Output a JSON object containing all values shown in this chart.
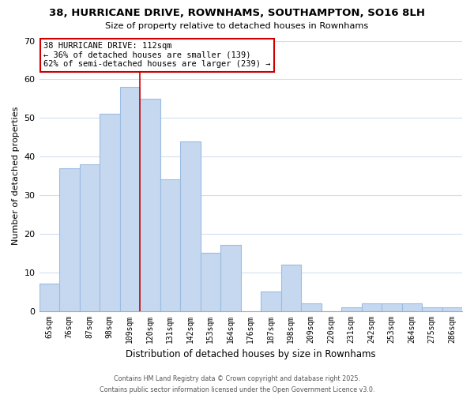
{
  "title": "38, HURRICANE DRIVE, ROWNHAMS, SOUTHAMPTON, SO16 8LH",
  "subtitle": "Size of property relative to detached houses in Rownhams",
  "xlabel": "Distribution of detached houses by size in Rownhams",
  "ylabel": "Number of detached properties",
  "bar_labels": [
    "65sqm",
    "76sqm",
    "87sqm",
    "98sqm",
    "109sqm",
    "120sqm",
    "131sqm",
    "142sqm",
    "153sqm",
    "164sqm",
    "176sqm",
    "187sqm",
    "198sqm",
    "209sqm",
    "220sqm",
    "231sqm",
    "242sqm",
    "253sqm",
    "264sqm",
    "275sqm",
    "286sqm"
  ],
  "bar_values": [
    7,
    37,
    38,
    51,
    58,
    55,
    34,
    44,
    15,
    17,
    0,
    5,
    12,
    2,
    0,
    1,
    2,
    2,
    2,
    1,
    1
  ],
  "bar_color": "#c5d8f0",
  "bar_edge_color": "#9bbce0",
  "ylim": [
    0,
    70
  ],
  "yticks": [
    0,
    10,
    20,
    30,
    40,
    50,
    60,
    70
  ],
  "property_line_index": 4,
  "property_line_color": "#cc0000",
  "annotation_line0": "38 HURRICANE DRIVE: 112sqm",
  "annotation_line1": "← 36% of detached houses are smaller (139)",
  "annotation_line2": "62% of semi-detached houses are larger (239) →",
  "annotation_box_color": "#ffffff",
  "annotation_box_edge": "#cc0000",
  "footnote1": "Contains HM Land Registry data © Crown copyright and database right 2025.",
  "footnote2": "Contains public sector information licensed under the Open Government Licence v3.0.",
  "background_color": "#ffffff",
  "grid_color": "#d0dff0"
}
